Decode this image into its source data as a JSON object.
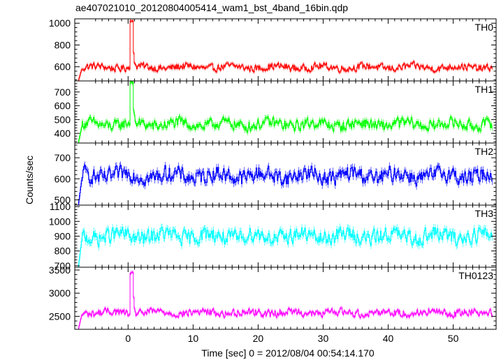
{
  "chart_data": {
    "type": "line",
    "title": "ae407021010_20120804005414_wam1_bst_4band_16bin.qdp",
    "xlabel": "Time [sec] 0 = 2012/08/04 00:54:14.170",
    "ylabel": "Counts/sec",
    "xlim": [
      -8.2,
      56.6
    ],
    "xticks": [
      0,
      10,
      20,
      30,
      40,
      50
    ],
    "grid": false,
    "panels": [
      {
        "name": "TH0",
        "color": "#ff0000",
        "ylim": [
          470,
          1040
        ],
        "yticks": [
          600,
          800,
          1000
        ],
        "baseline": 595,
        "noise": 45,
        "x0": -7.7,
        "spike_peak": 1030,
        "spike_width": 0.5
      },
      {
        "name": "TH1",
        "color": "#00ff00",
        "ylim": [
          330,
          780
        ],
        "yticks": [
          400,
          500,
          600,
          700
        ],
        "baseline": 465,
        "noise": 55,
        "x0": -7.7,
        "spike_peak": 780,
        "spike_width": 0.5
      },
      {
        "name": "TH2",
        "color": "#0000ff",
        "ylim": [
          475,
          770
        ],
        "yticks": [
          500,
          600,
          700
        ],
        "baseline": 615,
        "noise": 50,
        "x0": -7.7,
        "spike_peak": null,
        "spike_width": 0
      },
      {
        "name": "TH3",
        "color": "#00ffff",
        "ylim": [
          690,
          1110
        ],
        "yticks": [
          700,
          800,
          900,
          1000,
          1100
        ],
        "baseline": 900,
        "noise": 70,
        "x0": -7.7,
        "spike_peak": null,
        "spike_width": 0
      },
      {
        "name": "TH0123",
        "color": "#ff00ff",
        "ylim": [
          2220,
          3560
        ],
        "yticks": [
          2500,
          3000,
          3500
        ],
        "baseline": 2580,
        "noise": 110,
        "x0": -7.7,
        "spike_peak": 3460,
        "spike_width": 0.5
      }
    ]
  }
}
